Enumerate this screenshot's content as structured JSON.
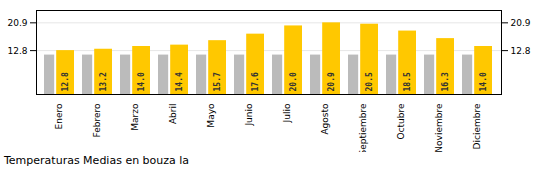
{
  "chart_data": {
    "type": "bar",
    "title": "Temperaturas Medias en bouza la",
    "categories": [
      "Enero",
      "Febrero",
      "Marzo",
      "Abril",
      "Mayo",
      "Junio",
      "Julio",
      "Agosto",
      "Septiembre",
      "Octubre",
      "Noviembre",
      "Diciembre"
    ],
    "series": [
      {
        "color": "#BBBBBB",
        "values": [
          11.5,
          11.5,
          11.5,
          11.5,
          11.5,
          11.5,
          11.5,
          11.5,
          11.5,
          11.5,
          11.5,
          11.5
        ]
      },
      {
        "color": "#FFC800",
        "values": [
          12.8,
          13.2,
          14.0,
          14.4,
          15.7,
          17.6,
          20.0,
          20.9,
          20.5,
          18.5,
          16.3,
          14.0
        ],
        "value_labels": [
          "12.8",
          "13.2",
          "14.0",
          "14.4",
          "15.7",
          "17.6",
          "20.0",
          "20.9",
          "20.5",
          "18.5",
          "16.3",
          "14.0"
        ],
        "data_labels": true
      }
    ],
    "ylim": [
      0,
      24.5
    ],
    "yticks": [
      12.8,
      20.9
    ],
    "grid": true
  }
}
